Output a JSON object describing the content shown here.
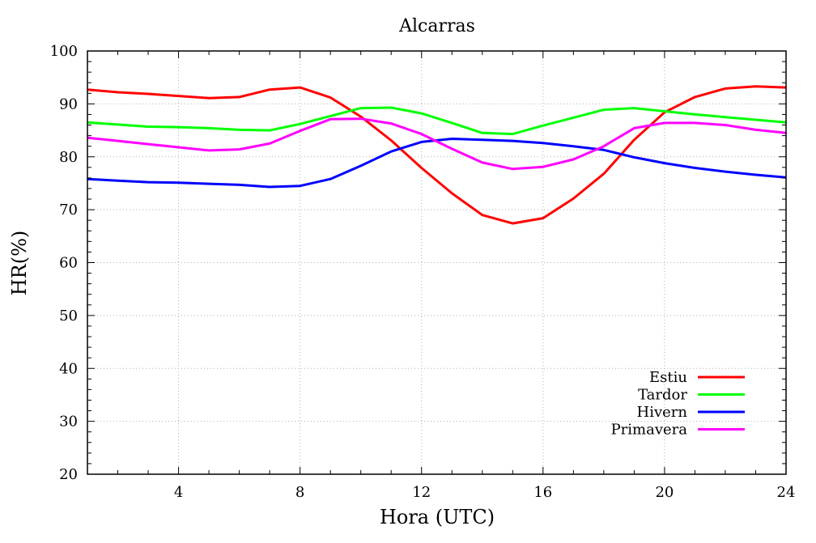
{
  "chart_data": {
    "type": "line",
    "title": "Alcarras",
    "xlabel": "Hora (UTC)",
    "ylabel": "HR(%)",
    "xlim": [
      1,
      24
    ],
    "ylim": [
      20,
      100
    ],
    "x_ticks": [
      4,
      8,
      12,
      16,
      20,
      24
    ],
    "x_tick_labels": [
      "4",
      "8",
      "12",
      "16",
      "20",
      "24"
    ],
    "y_ticks": [
      20,
      30,
      40,
      50,
      60,
      70,
      80,
      90,
      100
    ],
    "y_tick_labels": [
      "20",
      "30",
      "40",
      "50",
      "60",
      "70",
      "80",
      "90",
      "100"
    ],
    "grid": true,
    "legend_position": "bottom-right",
    "x": [
      1,
      2,
      3,
      4,
      5,
      6,
      7,
      8,
      9,
      10,
      11,
      12,
      13,
      14,
      15,
      16,
      17,
      18,
      19,
      20,
      21,
      22,
      23,
      24
    ],
    "series": [
      {
        "name": "Estiu",
        "color": "#ff0000",
        "values": [
          92.7,
          92.2,
          91.9,
          91.5,
          91.1,
          91.3,
          92.7,
          93.1,
          91.2,
          87.6,
          83.1,
          77.9,
          73.1,
          69.0,
          67.4,
          68.4,
          72.1,
          76.8,
          83.2,
          88.4,
          91.3,
          92.9,
          93.3,
          93.1
        ]
      },
      {
        "name": "Tardor",
        "color": "#00ff00",
        "values": [
          86.5,
          86.1,
          85.7,
          85.6,
          85.4,
          85.1,
          85.0,
          86.2,
          87.7,
          89.2,
          89.3,
          88.2,
          86.4,
          84.5,
          84.3,
          85.9,
          87.4,
          88.9,
          89.2,
          88.6,
          88.0,
          87.5,
          87.0,
          86.5
        ]
      },
      {
        "name": "Hivern",
        "color": "#0000ff",
        "values": [
          75.8,
          75.5,
          75.2,
          75.1,
          74.9,
          74.7,
          74.3,
          74.5,
          75.8,
          78.3,
          81.0,
          82.8,
          83.4,
          83.2,
          83.0,
          82.6,
          82.0,
          81.3,
          79.9,
          78.8,
          77.9,
          77.2,
          76.6,
          76.1
        ]
      },
      {
        "name": "Primavera",
        "color": "#ff00ff",
        "values": [
          83.6,
          83.0,
          82.4,
          81.8,
          81.2,
          81.4,
          82.5,
          84.9,
          87.1,
          87.2,
          86.3,
          84.3,
          81.5,
          78.9,
          77.7,
          78.1,
          79.5,
          82.0,
          85.4,
          86.4,
          86.4,
          86.0,
          85.1,
          84.5
        ]
      }
    ]
  }
}
